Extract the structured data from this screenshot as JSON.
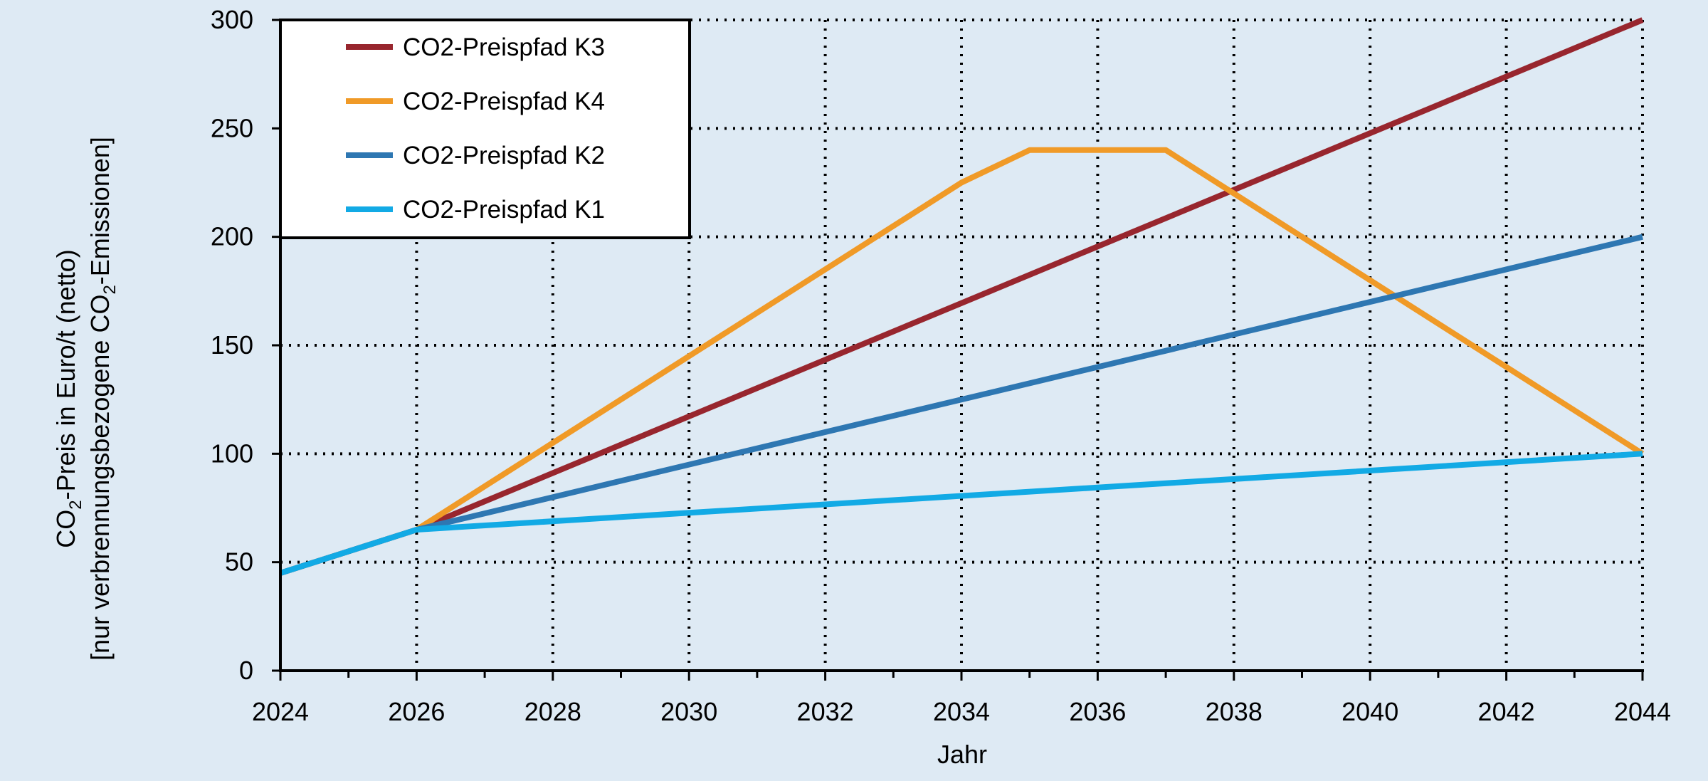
{
  "chart_data": {
    "type": "line",
    "xlabel": "Jahr",
    "ylabel_line1_parts": [
      "CO",
      "2",
      "-Preis in Euro/t (netto)"
    ],
    "ylabel_line2_parts": [
      "[nur verbrennungsbezogene CO",
      "2",
      "-Emissionen]"
    ],
    "xlim": [
      2024,
      2044
    ],
    "ylim": [
      0,
      300
    ],
    "x_ticks": [
      2024,
      2026,
      2028,
      2030,
      2032,
      2034,
      2036,
      2038,
      2040,
      2042,
      2044
    ],
    "x_tick_labels": [
      "2024",
      "2026",
      "2028",
      "2030",
      "2032",
      "2034",
      "2036",
      "2038",
      "2040",
      "2042",
      "2044"
    ],
    "y_ticks": [
      0,
      50,
      100,
      150,
      200,
      250,
      300
    ],
    "y_tick_labels": [
      "0",
      "50",
      "100",
      "150",
      "200",
      "250",
      "300"
    ],
    "grid": true,
    "legend_position": "top-left",
    "series": [
      {
        "name": "CO2-Preispfad K3",
        "color": "#98262e",
        "points": [
          [
            2024,
            45
          ],
          [
            2026,
            65
          ],
          [
            2044,
            300
          ]
        ]
      },
      {
        "name": "CO2-Preispfad K4",
        "color": "#f09a27",
        "points": [
          [
            2024,
            45
          ],
          [
            2026,
            65
          ],
          [
            2034,
            225
          ],
          [
            2035,
            240
          ],
          [
            2037,
            240
          ],
          [
            2044,
            100
          ]
        ]
      },
      {
        "name": "CO2-Preispfad K2",
        "color": "#2e77b2",
        "points": [
          [
            2024,
            45
          ],
          [
            2026,
            65
          ],
          [
            2044,
            200
          ]
        ]
      },
      {
        "name": "CO2-Preispfad K1",
        "color": "#12aae5",
        "points": [
          [
            2024,
            45
          ],
          [
            2026,
            65
          ],
          [
            2044,
            100
          ]
        ]
      }
    ]
  }
}
